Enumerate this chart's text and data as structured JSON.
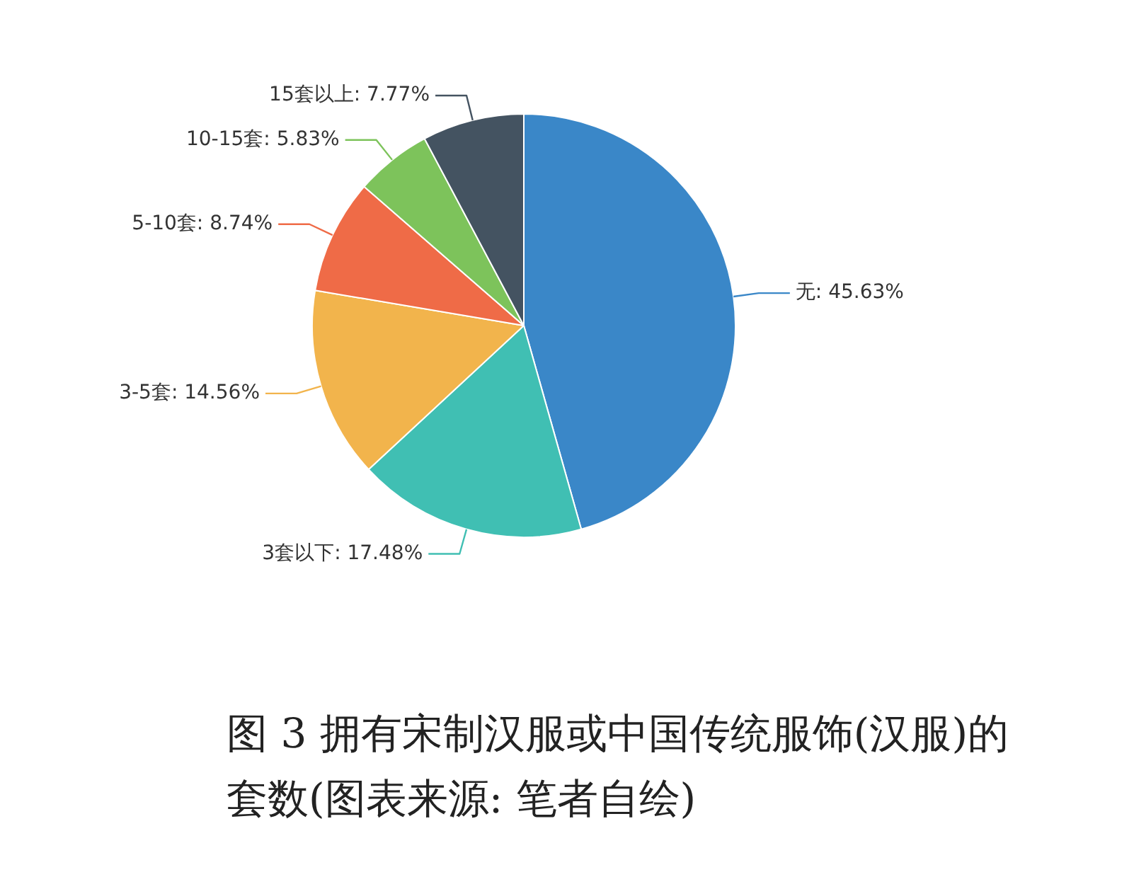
{
  "chart_data": {
    "type": "pie",
    "categories": [
      "无",
      "3套以下",
      "3-5套",
      "5-10套",
      "10-15套",
      "15套以上"
    ],
    "values": [
      45.63,
      17.48,
      14.56,
      8.74,
      5.83,
      7.77
    ],
    "value_labels": [
      "45.63%",
      "17.48%",
      "14.56%",
      "8.74%",
      "5.83%",
      "7.77%"
    ],
    "colors": [
      "#3a87c8",
      "#40bfb3",
      "#f2b44c",
      "#ef6b47",
      "#7dc35b",
      "#445361"
    ],
    "legend": false,
    "annotations": [
      "图 3  拥有宋制汉服或中国传统服饰(汉服)的套数(图表来源: 笔者自绘)"
    ]
  }
}
